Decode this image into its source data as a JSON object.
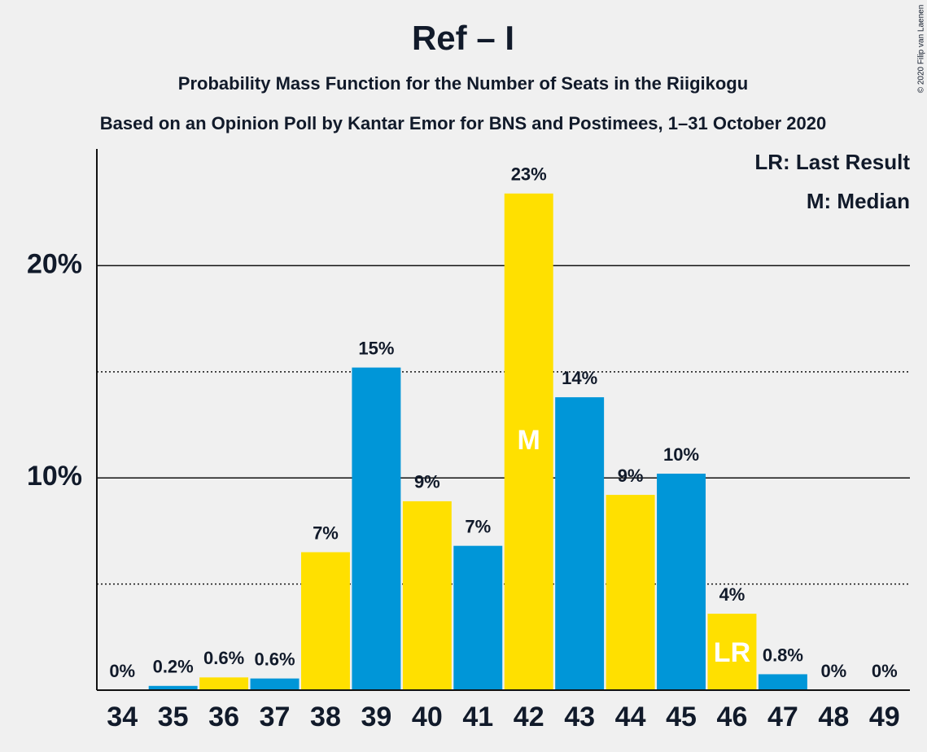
{
  "chart_data": {
    "type": "bar",
    "title": "Ref – I",
    "subtitle": "Probability Mass Function for the Number of Seats in the Riigikogu",
    "subtitle2": "Based on an Opinion Poll by Kantar Emor for BNS and Postimees, 1–31 October 2020",
    "copyright": "© 2020 Filip van Laenen",
    "categories": [
      "34",
      "35",
      "36",
      "37",
      "38",
      "39",
      "40",
      "41",
      "42",
      "43",
      "44",
      "45",
      "46",
      "47",
      "48",
      "49"
    ],
    "values": [
      0,
      0.2,
      0.6,
      0.55,
      6.5,
      15.2,
      8.9,
      6.8,
      23.4,
      13.8,
      9.2,
      10.2,
      3.6,
      0.75,
      0,
      0
    ],
    "value_labels": [
      "0%",
      "0.2%",
      "0.6%",
      "0.6%",
      "7%",
      "15%",
      "9%",
      "7%",
      "23%",
      "14%",
      "9%",
      "10%",
      "4%",
      "0.8%",
      "0%",
      "0%"
    ],
    "colors": [
      "#ffe000",
      "#0096d8",
      "#ffe000",
      "#0096d8",
      "#ffe000",
      "#0096d8",
      "#ffe000",
      "#0096d8",
      "#ffe000",
      "#0096d8",
      "#ffe000",
      "#0096d8",
      "#ffe000",
      "#0096d8",
      "#ffe000",
      "#0096d8"
    ],
    "ylim": [
      0,
      25.5
    ],
    "yticks": [
      {
        "value": 10,
        "label": "10%"
      },
      {
        "value": 20,
        "label": "20%"
      }
    ],
    "minor_yticks": [
      5,
      15
    ],
    "grid": true,
    "annotations": [
      {
        "text": "M",
        "category": "42"
      },
      {
        "text": "LR",
        "category": "46"
      }
    ],
    "legend_notes": [
      "LR: Last Result",
      "M: Median"
    ]
  }
}
